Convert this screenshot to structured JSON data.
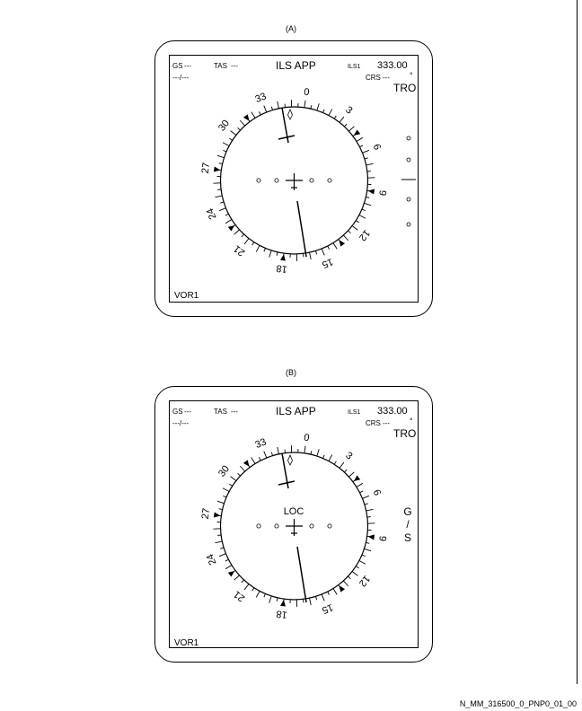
{
  "panels": [
    {
      "caption": "(A)",
      "gs_label": "GS",
      "gs_value": "---",
      "tas_label": "TAS",
      "tas_value": "---",
      "wind_value": "---/---",
      "mode_title": "ILS APP",
      "nav_source": "ILS1",
      "frequency": "333.00",
      "crs_label": "CRS",
      "crs_value": "---",
      "degree_symbol": "°",
      "ident": "TRO",
      "receiver": "VOR1",
      "compass_labels": [
        "0",
        "3",
        "6",
        "9",
        "12",
        "15",
        "18",
        "21",
        "24",
        "27",
        "30",
        "33"
      ],
      "center_flag": "",
      "gs_flag": []
    },
    {
      "caption": "(B)",
      "gs_label": "GS",
      "gs_value": "---",
      "tas_label": "TAS",
      "tas_value": "---",
      "wind_value": "---/---",
      "mode_title": "ILS APP",
      "nav_source": "ILS1",
      "frequency": "333.00",
      "crs_label": "CRS",
      "crs_value": "---",
      "degree_symbol": "°",
      "ident": "TRO",
      "receiver": "VOR1",
      "compass_labels": [
        "0",
        "3",
        "6",
        "9",
        "12",
        "15",
        "18",
        "21",
        "24",
        "27",
        "30",
        "33"
      ],
      "center_flag": "LOC",
      "gs_flag": [
        "G",
        "/",
        "S"
      ]
    }
  ],
  "reference_code": "N_MM_316500_0_PNP0_01_00"
}
